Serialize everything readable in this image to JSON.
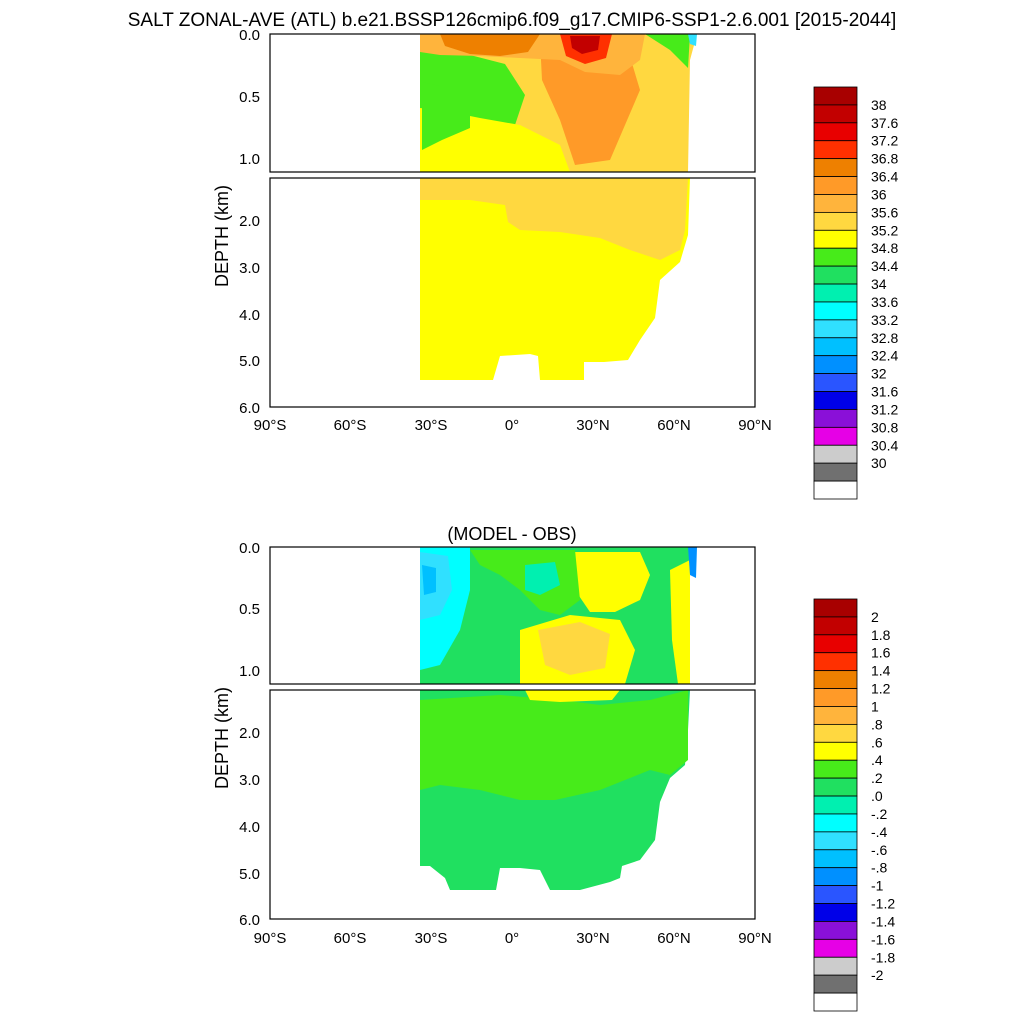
{
  "title": "SALT ZONAL-AVE (ATL) b.e21.BSSP126cmip6.f09_g17.CMIP6-SSP1-2.6.001 [2015-2044]",
  "chart_data": [
    {
      "type": "heatmap",
      "title": "",
      "ylabel": "DEPTH (km)",
      "xlabel": "",
      "xlim": [
        -90,
        90
      ],
      "ylim": [
        0,
        6
      ],
      "x_ticks": [
        "90°S",
        "60°S",
        "30°S",
        "0°",
        "30°N",
        "60°N",
        "90°N"
      ],
      "y_ticks_upper": [
        "0.0",
        "0.5",
        "1.0"
      ],
      "y_ticks_lower": [
        "2.0",
        "3.0",
        "4.0",
        "5.0",
        "6.0"
      ],
      "colorbar_levels": [
        "38",
        "37.6",
        "37.2",
        "36.8",
        "36.4",
        "36",
        "35.6",
        "35.2",
        "34.8",
        "34.4",
        "34",
        "33.6",
        "33.2",
        "32.8",
        "32.4",
        "32",
        "31.6",
        "31.2",
        "30.8",
        "30.4",
        "30"
      ],
      "colorbar_colors": [
        "#a80000",
        "#c20000",
        "#e80000",
        "#ff3000",
        "#ee8000",
        "#ff9a28",
        "#ffb43c",
        "#ffd840",
        "#ffff00",
        "#47eb1a",
        "#20e060",
        "#00f0b0",
        "#00ffff",
        "#30e0ff",
        "#00c0ff",
        "#0090ff",
        "#2a55ff",
        "#0000e8",
        "#8a10d8",
        "#e600e6",
        "#cccccc",
        "#707070",
        "#ffffff"
      ]
    },
    {
      "type": "heatmap",
      "title": "(MODEL - OBS)",
      "ylabel": "DEPTH (km)",
      "xlabel": "",
      "xlim": [
        -90,
        90
      ],
      "ylim": [
        0,
        6
      ],
      "x_ticks": [
        "90°S",
        "60°S",
        "30°S",
        "0°",
        "30°N",
        "60°N",
        "90°N"
      ],
      "y_ticks_upper": [
        "0.0",
        "0.5",
        "1.0"
      ],
      "y_ticks_lower": [
        "2.0",
        "3.0",
        "4.0",
        "5.0",
        "6.0"
      ],
      "colorbar_levels": [
        "2",
        "1.8",
        "1.6",
        "1.4",
        "1.2",
        "1",
        ".8",
        ".6",
        ".4",
        ".2",
        ".0",
        "-.2",
        "-.4",
        "-.6",
        "-.8",
        "-1",
        "-1.2",
        "-1.4",
        "-1.6",
        "-1.8",
        "-2"
      ],
      "colorbar_colors": [
        "#a80000",
        "#c20000",
        "#e80000",
        "#ff3000",
        "#ee8000",
        "#ff9a28",
        "#ffb43c",
        "#ffd840",
        "#ffff00",
        "#47eb1a",
        "#20e060",
        "#00f0b0",
        "#00ffff",
        "#30e0ff",
        "#00c0ff",
        "#0090ff",
        "#2a55ff",
        "#0000e8",
        "#8a10d8",
        "#e600e6",
        "#cccccc",
        "#707070",
        "#ffffff"
      ]
    }
  ]
}
